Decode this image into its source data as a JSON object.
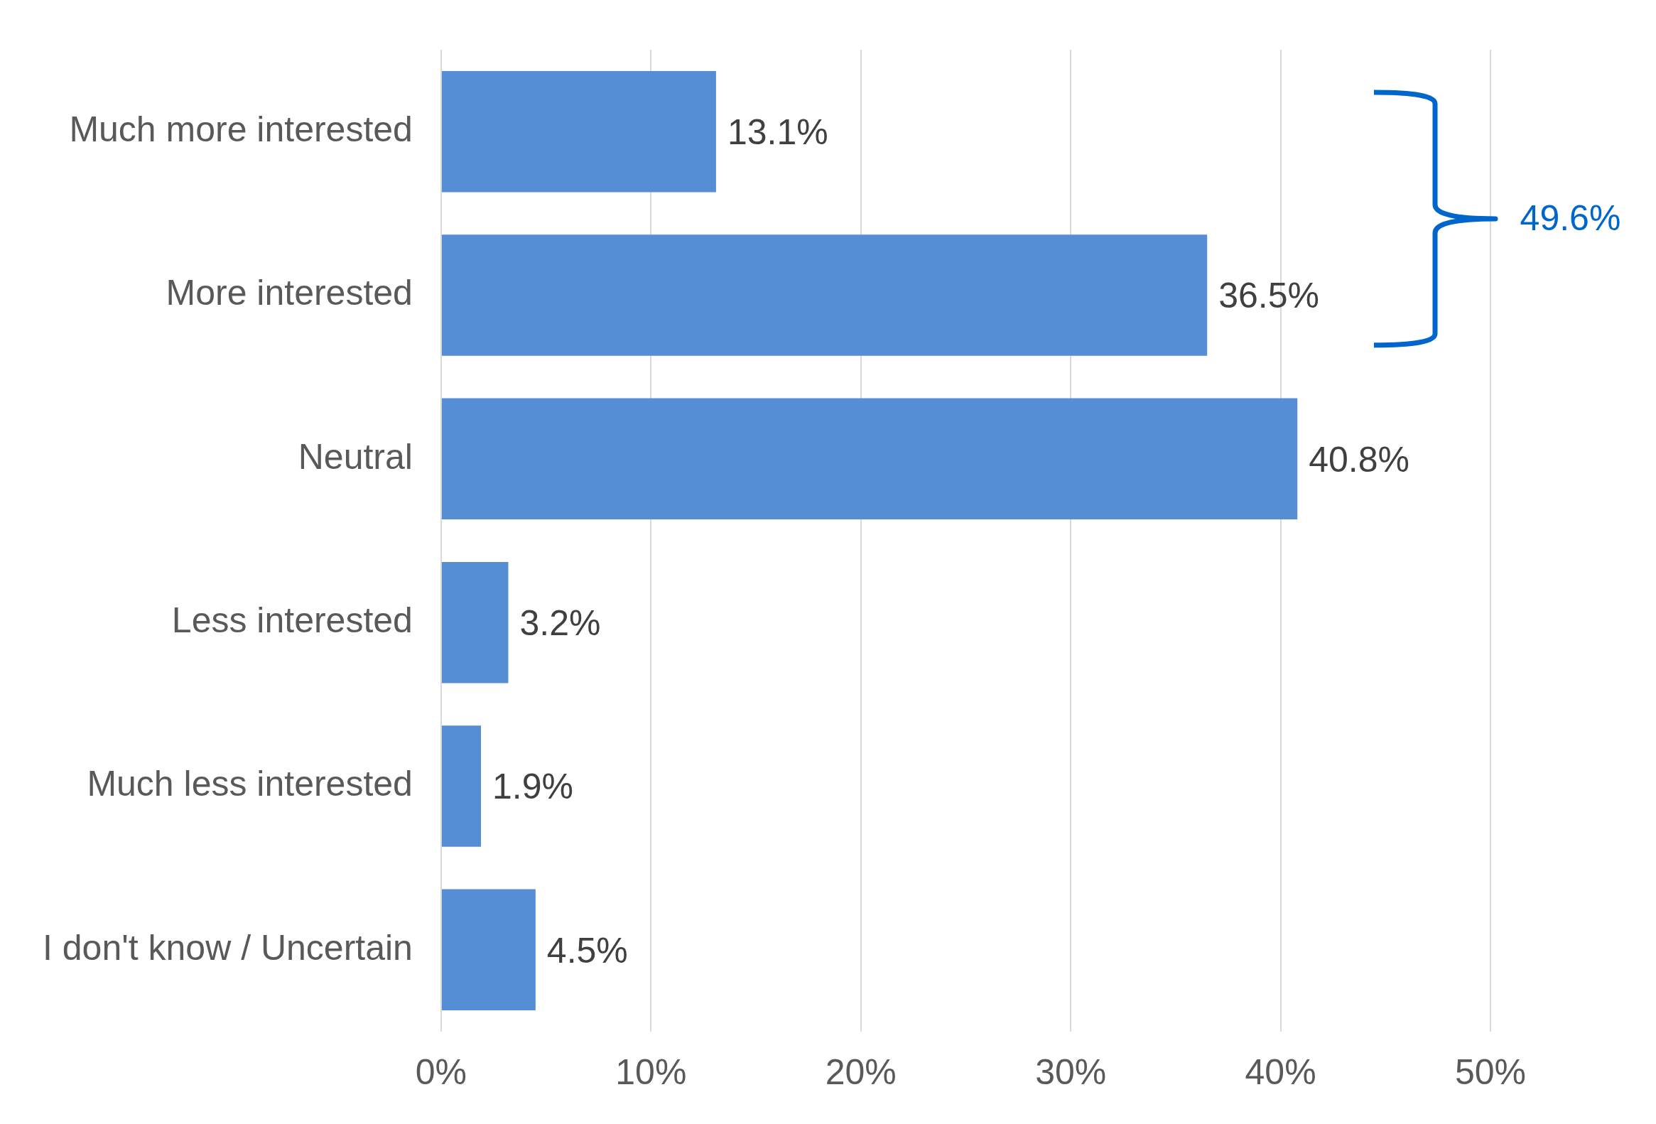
{
  "chart_data": {
    "type": "bar",
    "orientation": "horizontal",
    "categories": [
      "Much more interested",
      "More interested",
      "Neutral",
      "Less interested",
      "Much less interested",
      "I don't know / Uncertain"
    ],
    "values": [
      13.1,
      36.5,
      40.8,
      3.2,
      1.9,
      4.5
    ],
    "value_labels": [
      "13.1%",
      "36.5%",
      "40.8%",
      "3.2%",
      "1.9%",
      "4.5%"
    ],
    "color": "#558ed5",
    "xlim": [
      0,
      50
    ],
    "xticks": [
      {
        "value": 0,
        "label": "0%"
      },
      {
        "value": 10,
        "label": "10%"
      },
      {
        "value": 20,
        "label": "20%"
      },
      {
        "value": 30,
        "label": "30%"
      },
      {
        "value": 40,
        "label": "40%"
      },
      {
        "value": 50,
        "label": "50%"
      }
    ],
    "grid": "x",
    "annotations": [
      "49.6%"
    ]
  }
}
